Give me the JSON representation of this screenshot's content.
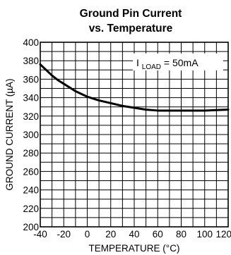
{
  "chart_data": {
    "type": "line",
    "title_lines": [
      "Ground Pin Current",
      "vs. Temperature"
    ],
    "xlabel": "TEMPERATURE (°C)",
    "ylabel": "GROUND CURRENT (µA)",
    "xlim": [
      -40,
      120
    ],
    "ylim": [
      200,
      400
    ],
    "x_ticks": [
      -40,
      -20,
      0,
      20,
      40,
      60,
      80,
      100,
      120
    ],
    "y_ticks": [
      200,
      220,
      240,
      260,
      280,
      300,
      320,
      340,
      360,
      380,
      400
    ],
    "grid": true,
    "annotation": {
      "main": "I",
      "sub": "LOAD",
      "rest": " = 50mA",
      "position": "top-right"
    },
    "series": [
      {
        "x": [
          -40,
          -35,
          -30,
          -25,
          -20,
          -15,
          -10,
          -5,
          0,
          5,
          10,
          20,
          30,
          40,
          50,
          60,
          70,
          80,
          90,
          100,
          110,
          120
        ],
        "values": [
          376,
          370,
          364,
          359,
          355,
          351,
          347,
          344,
          341,
          339,
          337,
          334,
          331,
          329,
          327,
          326,
          326,
          326,
          326,
          326,
          326.5,
          327
        ]
      }
    ]
  }
}
